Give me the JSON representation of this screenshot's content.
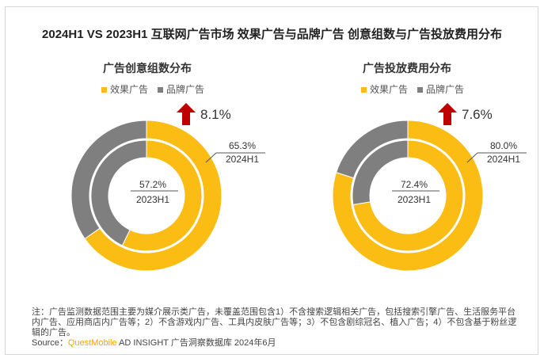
{
  "title": "2024H1 VS 2023H1 互联网广告市场 效果广告与品牌广告 创意组数与广告投放费用分布",
  "colors": {
    "effect": "#fbbd14",
    "brand": "#7f7f7f",
    "arrow": "#c00000"
  },
  "chart_data": [
    {
      "type": "donut",
      "title": "广告创意组数分布",
      "legend": [
        "效果广告",
        "品牌广告"
      ],
      "rings": [
        {
          "label": "2024H1",
          "effect": 65.3,
          "brand": 34.7,
          "effect_label": "65.3%"
        },
        {
          "label": "2023H1",
          "effect": 57.2,
          "brand": 42.8,
          "effect_label": "57.2%"
        }
      ],
      "change": "8.1%"
    },
    {
      "type": "donut",
      "title": "广告投放费用分布",
      "legend": [
        "效果广告",
        "品牌广告"
      ],
      "rings": [
        {
          "label": "2024H1",
          "effect": 80.0,
          "brand": 20.0,
          "effect_label": "80.0%"
        },
        {
          "label": "2023H1",
          "effect": 72.4,
          "brand": 27.6,
          "effect_label": "72.4%"
        }
      ],
      "change": "7.6%"
    }
  ],
  "note": "注：广告监测数据范围主要为媒介展示类广告，未覆盖范围包含1）不含搜索逻辑相关广告，包括搜索引擎广告、生活服务平台内广告、应用商店内广告等；2）不含游戏内广告、工具内皮肤广告等；3）不包含剧综冠名、植入广告；4）不包含基于粉丝逻辑的广告。",
  "source_label": "Source：",
  "source_brand": "QuestMobile",
  "source_text": " AD INSIGHT 广告洞察数据库 2024年6月"
}
